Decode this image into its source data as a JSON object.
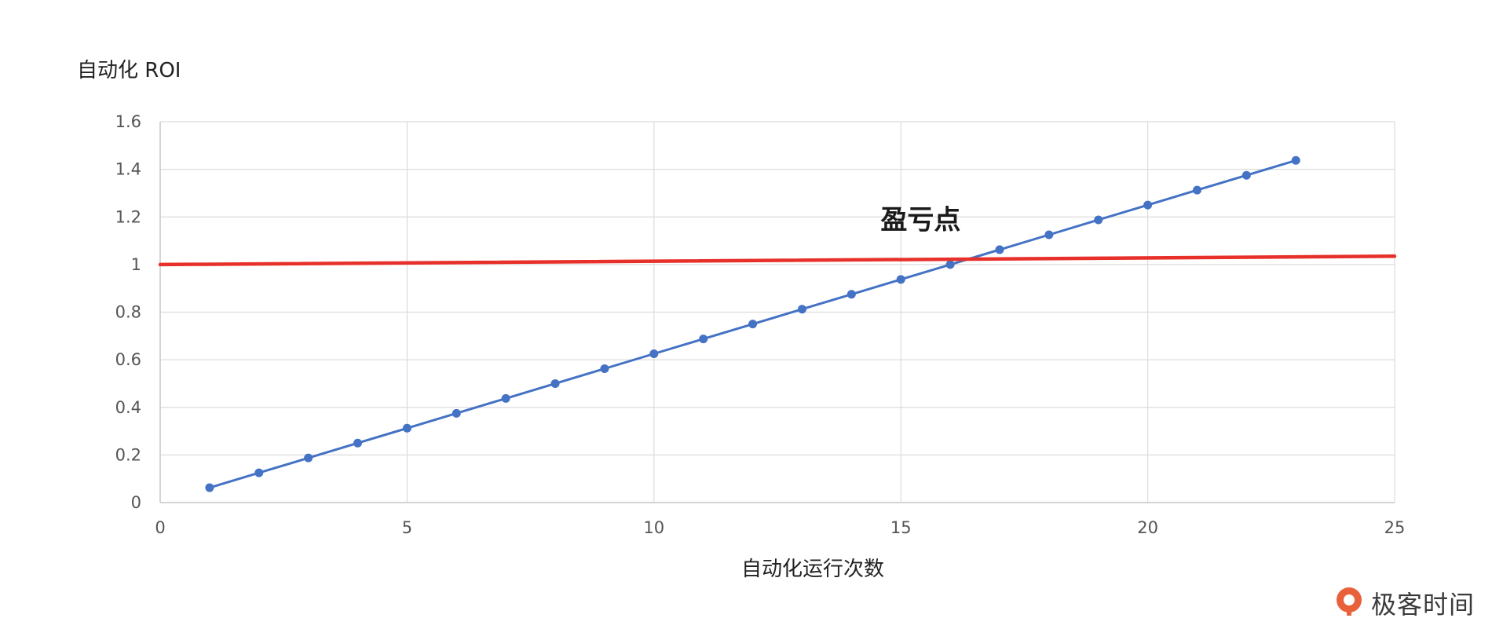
{
  "chart_data": {
    "type": "line",
    "ylabel": "自动化 ROI",
    "xlabel": "自动化运行次数",
    "xlim": [
      0,
      25
    ],
    "ylim": [
      0,
      1.6
    ],
    "x_ticks": [
      "0",
      "5",
      "10",
      "15",
      "20",
      "25"
    ],
    "y_ticks": [
      "0",
      "0.2",
      "0.4",
      "0.6",
      "0.8",
      "1",
      "1.2",
      "1.4",
      "1.6"
    ],
    "grid": true,
    "legend": "none",
    "series": [
      {
        "color": "#4472C4",
        "markers": true,
        "x": [
          1,
          2,
          3,
          4,
          5,
          6,
          7,
          8,
          9,
          10,
          11,
          12,
          13,
          14,
          15,
          16,
          17,
          18,
          19,
          20,
          21,
          22,
          23
        ],
        "y": [
          0.0625,
          0.125,
          0.1875,
          0.25,
          0.3125,
          0.375,
          0.4375,
          0.5,
          0.5625,
          0.625,
          0.6875,
          0.75,
          0.8125,
          0.875,
          0.9375,
          1.0,
          1.0625,
          1.125,
          1.1875,
          1.25,
          1.3125,
          1.375,
          1.4375
        ]
      },
      {
        "color": "#E8302A",
        "markers": false,
        "x": [
          0,
          25
        ],
        "y": [
          1.0,
          1.035
        ]
      }
    ],
    "annotations": [
      {
        "text": "盈亏点",
        "x": 15.4,
        "y": 1.15
      }
    ]
  },
  "watermark": {
    "text": "极客时间",
    "icon": "geektime-logo-icon",
    "color": "#E8613A"
  }
}
